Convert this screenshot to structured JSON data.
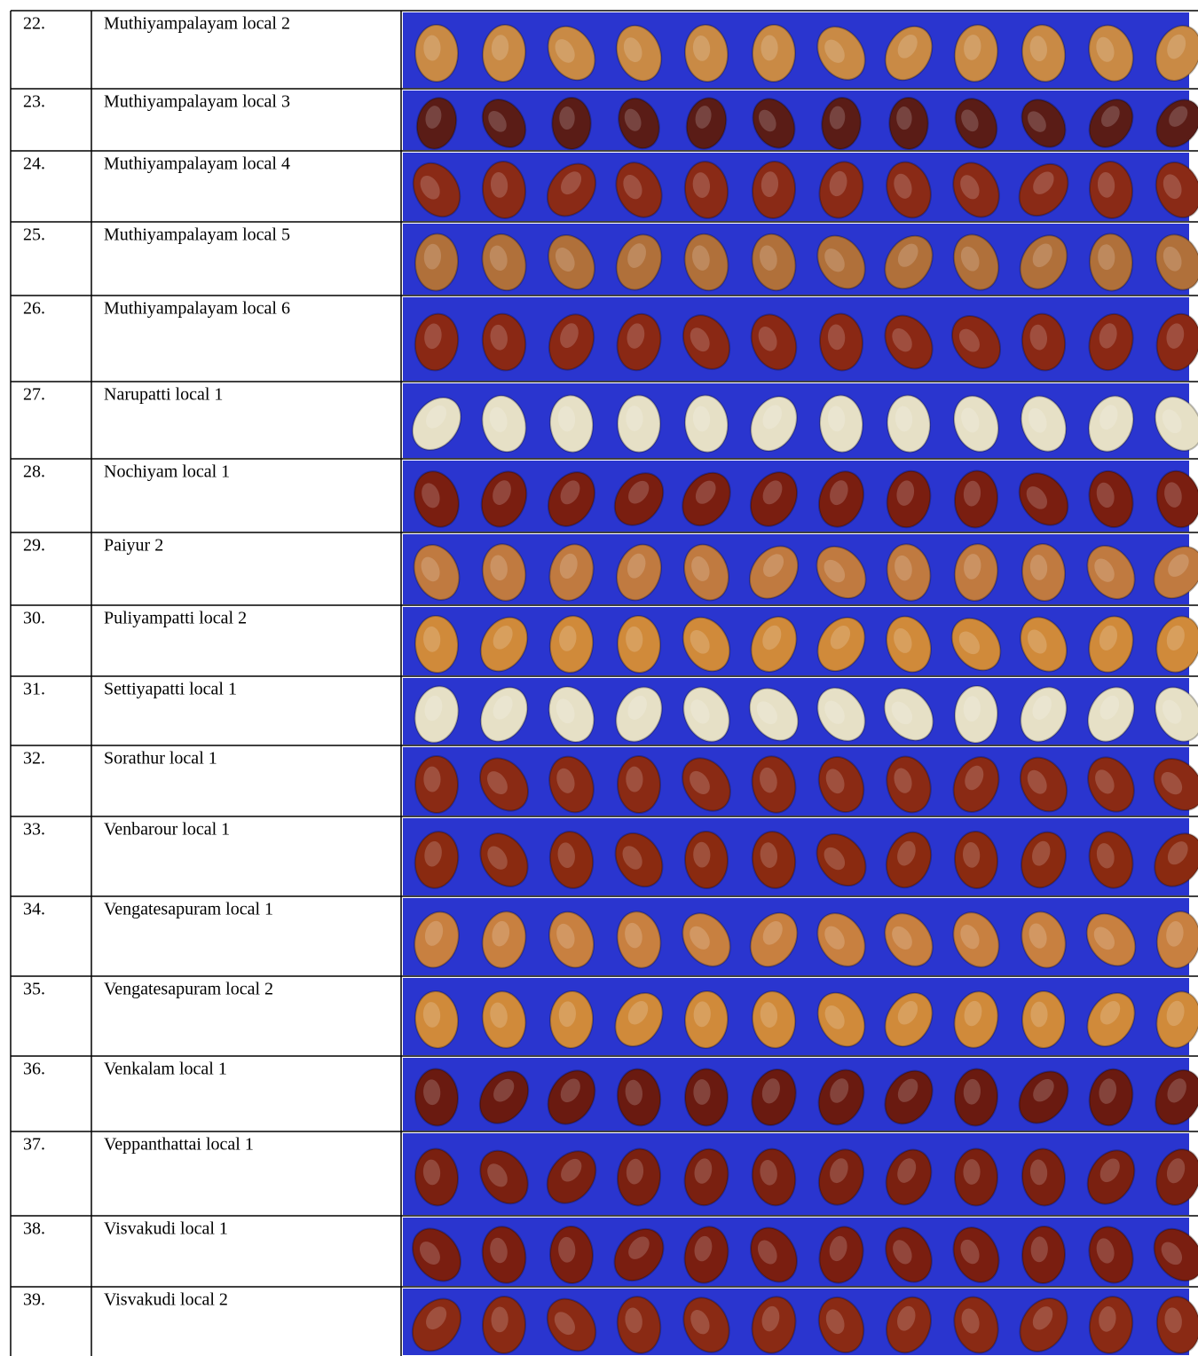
{
  "table": {
    "rows": [
      [
        "22.",
        "Muthiyampalayam local 2"
      ],
      [
        "23.",
        "Muthiyampalayam local 3"
      ],
      [
        "24.",
        "Muthiyampalayam local 4"
      ],
      [
        "25.",
        "Muthiyampalayam local 5"
      ],
      [
        "26.",
        "Muthiyampalayam local 6"
      ],
      [
        "27.",
        "Narupatti local 1"
      ],
      [
        "28.",
        "Nochiyam local 1"
      ],
      [
        "29.",
        "Paiyur 2"
      ],
      [
        "30.",
        "Puliyampatti local 2"
      ],
      [
        "31.",
        "Settiyapatti local 1"
      ],
      [
        "32.",
        "Sorathur local 1"
      ],
      [
        "33.",
        "Venbarour local 1"
      ],
      [
        "34.",
        "Vengatesapuram local 1"
      ],
      [
        "35.",
        "Vengatesapuram local 2"
      ],
      [
        "36.",
        "Venkalam local 1"
      ],
      [
        "37.",
        "Veppanthattai local 1"
      ],
      [
        "38.",
        "Visvakudi local 1"
      ],
      [
        "39.",
        "Visvakudi local 2"
      ]
    ]
  }
}
